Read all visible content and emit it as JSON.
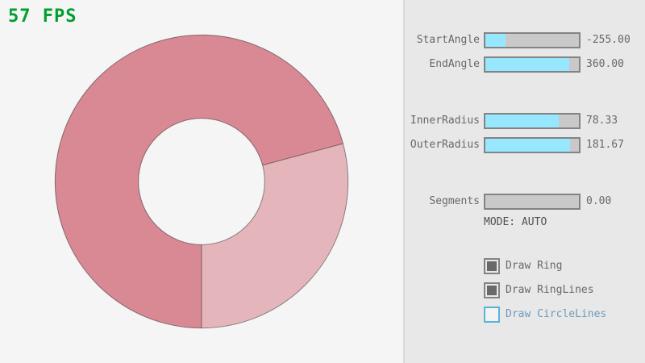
{
  "fps_label": "57 FPS",
  "ring": {
    "start_angle": -255.0,
    "end_angle": 360.0,
    "inner_radius": 78.33,
    "outer_radius": 181.67,
    "color_single_pass": "#E4B6BC",
    "color_overlap": "#D98994",
    "line_color": "rgba(0,0,0,0.42)"
  },
  "panel": {
    "sliders": [
      {
        "label": "StartAngle",
        "value": "-255.00",
        "fill_pct": 21.67
      },
      {
        "label": "EndAngle",
        "value": "360.00",
        "fill_pct": 90.0
      },
      {
        "label": "InnerRadius",
        "value": "78.33",
        "fill_pct": 78.33
      },
      {
        "label": "OuterRadius",
        "value": "181.67",
        "fill_pct": 90.83
      },
      {
        "label": "Segments",
        "value": "0.00",
        "fill_pct": 0.0
      }
    ],
    "mode_label": "MODE: AUTO",
    "checkboxes": [
      {
        "label": "Draw Ring",
        "checked": true,
        "focused": false
      },
      {
        "label": "Draw RingLines",
        "checked": true,
        "focused": false
      },
      {
        "label": "Draw CircleLines",
        "checked": false,
        "focused": true
      }
    ]
  },
  "colors": {
    "fps_green": "#009E2F",
    "canvas_bg": "#F5F5F5",
    "panel_bg": "#E8E8E8",
    "slider_fill_blue": "#97E8FF",
    "slider_track": "#C9C9C9",
    "control_border": "#838383",
    "text_gray": "#686868",
    "checkbox_checked_fill": "#696969",
    "focused_border_blue": "#5BB2D9",
    "focused_text_blue": "#6C9BBC"
  }
}
